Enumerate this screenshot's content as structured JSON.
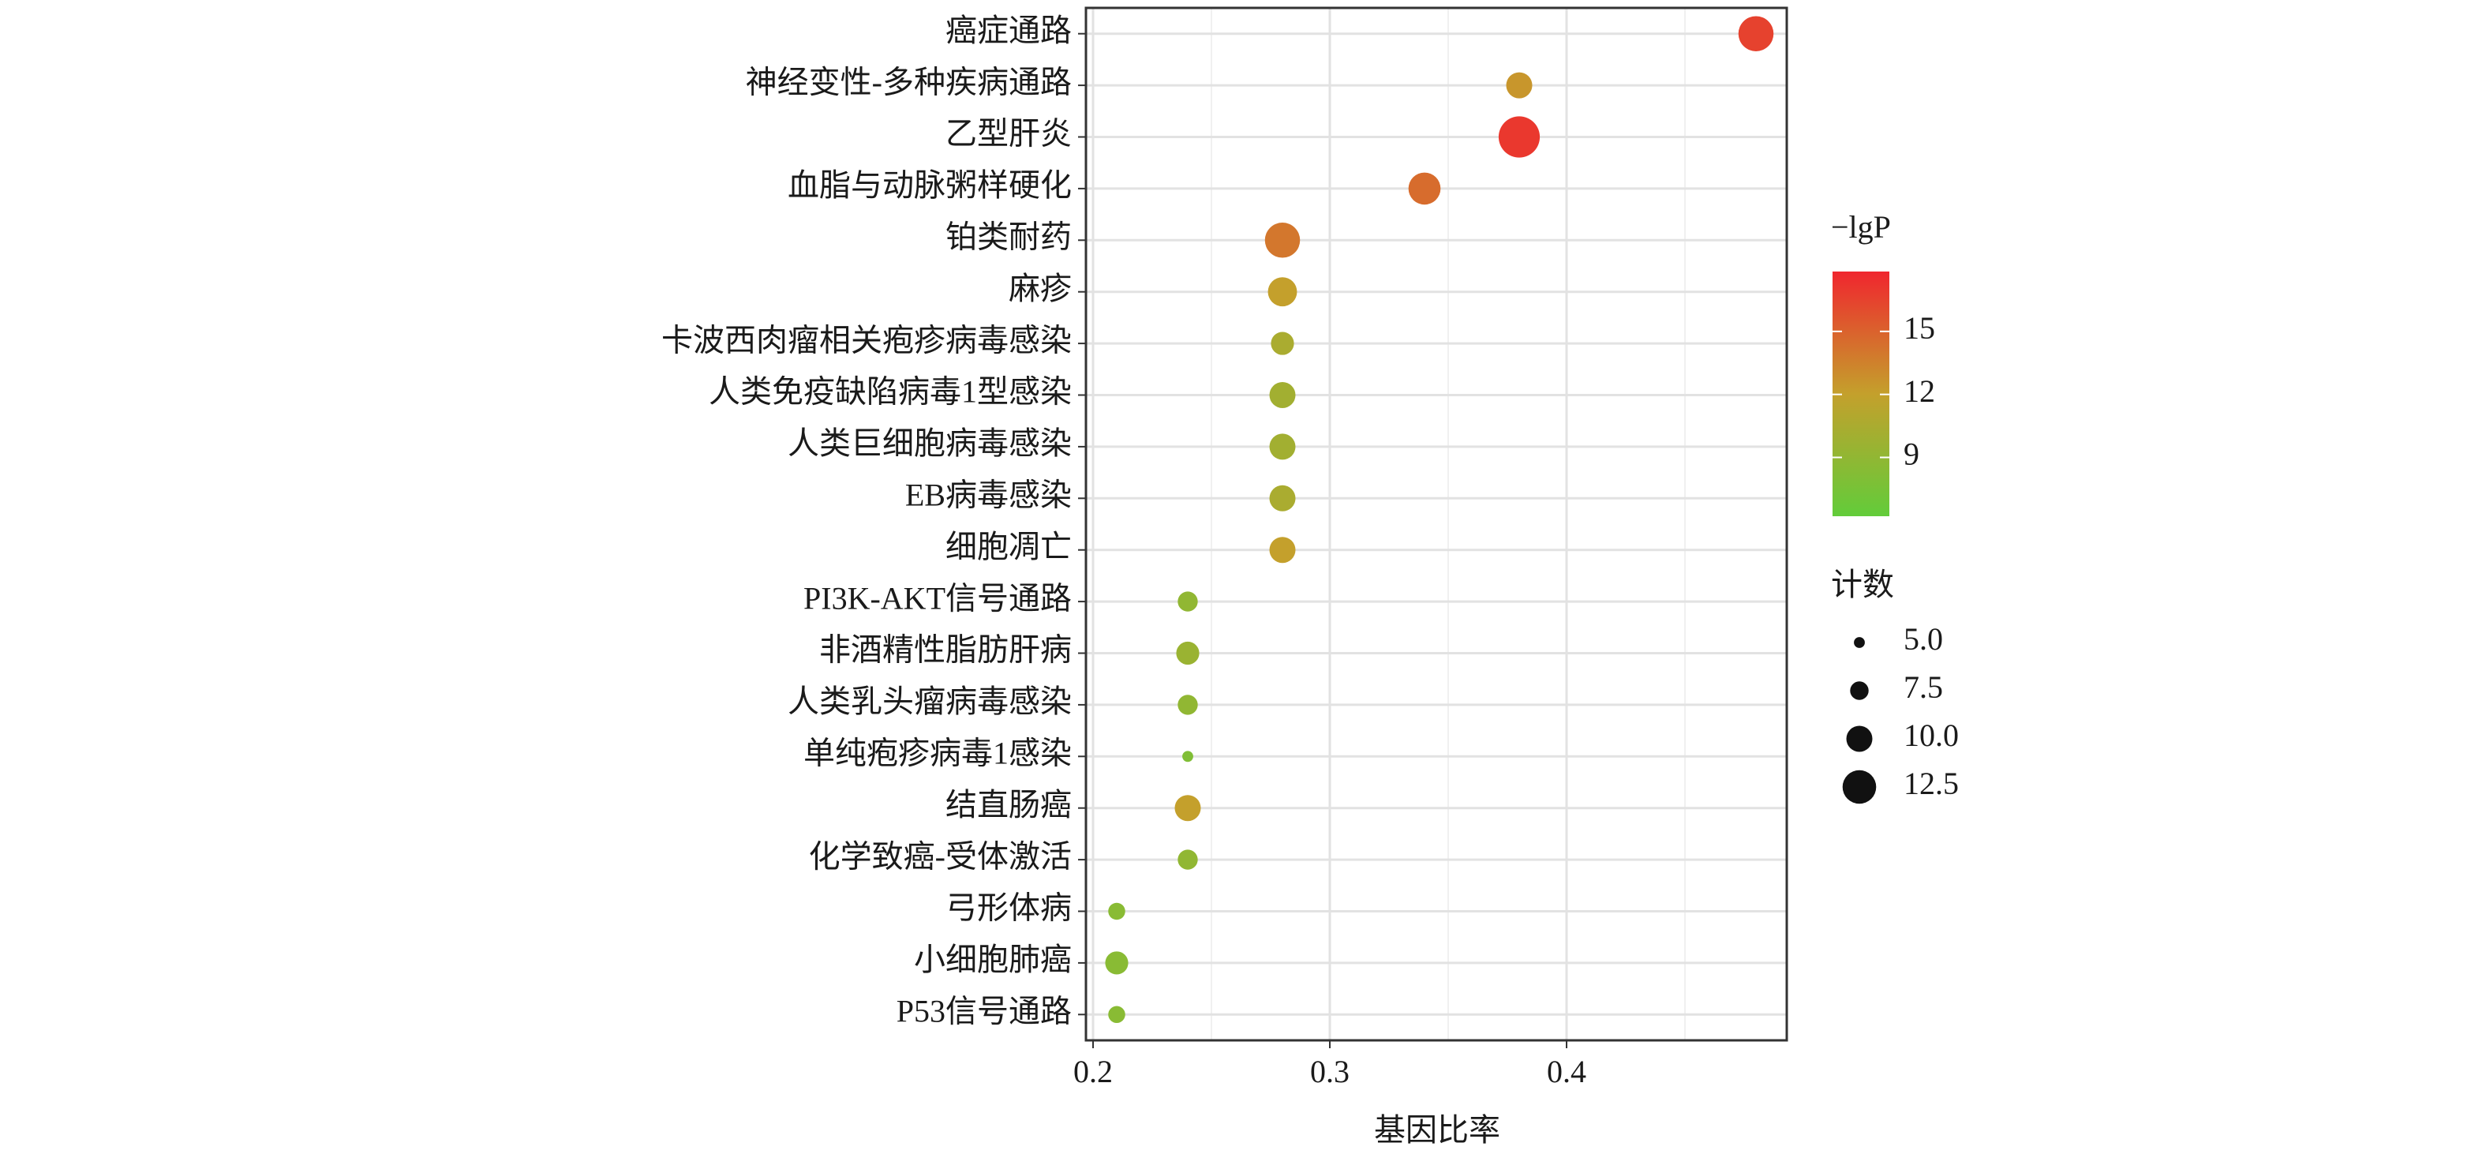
{
  "chart_data": {
    "type": "bubble",
    "x_label": "基因比率",
    "categories": [
      "癌症通路",
      "神经变性-多种疾病通路",
      "乙型肝炎",
      "血脂与动脉粥样硬化",
      "铂类耐药",
      "麻疹",
      "卡波西肉瘤相关疱疹病毒感染",
      "人类免疫缺陷病毒1型感染",
      "人类巨细胞病毒感染",
      "EB病毒感染",
      "细胞凋亡",
      "PI3K-AKT信号通路",
      "非酒精性脂肪肝病",
      "人类乳头瘤病毒感染",
      "单纯疱疹病毒1感染",
      "结直肠癌",
      "化学致癌-受体激活",
      "弓形体病",
      "小细胞肺癌",
      "P53信号通路"
    ],
    "values": [
      0.48,
      0.38,
      0.38,
      0.34,
      0.28,
      0.28,
      0.28,
      0.28,
      0.28,
      0.28,
      0.28,
      0.24,
      0.24,
      0.24,
      0.24,
      0.24,
      0.24,
      0.21,
      0.21,
      0.21
    ],
    "sizes": [
      13,
      10,
      15,
      12,
      13,
      11,
      9,
      10,
      10,
      10,
      10,
      8,
      9,
      8,
      5,
      10,
      8,
      7,
      9,
      7
    ],
    "colors_value": [
      16.5,
      12.5,
      17,
      14.5,
      14,
      12,
      10.5,
      10,
      10,
      10.5,
      12,
      9,
      9.5,
      9,
      8,
      12,
      9,
      8.5,
      8.5,
      8.5
    ],
    "xlim": [
      0.197,
      0.493
    ],
    "xticks": [
      0.2,
      0.3,
      0.4
    ],
    "grid": true,
    "color_legend": {
      "title": "−lgP",
      "lim": [
        6.2,
        17.85
      ],
      "ticks": [
        9,
        12,
        15
      ],
      "colors": [
        "#62cc3a",
        "#c4a02c",
        "#f0262e"
      ]
    },
    "size_legend": {
      "title": "计数",
      "lim": [
        4,
        16
      ],
      "ticks": [
        {
          "value": 5,
          "label": "5.0"
        },
        {
          "value": 7.5,
          "label": "7.5"
        },
        {
          "value": 10,
          "label": "10.0"
        },
        {
          "value": 12.5,
          "label": "12.5"
        }
      ]
    }
  }
}
